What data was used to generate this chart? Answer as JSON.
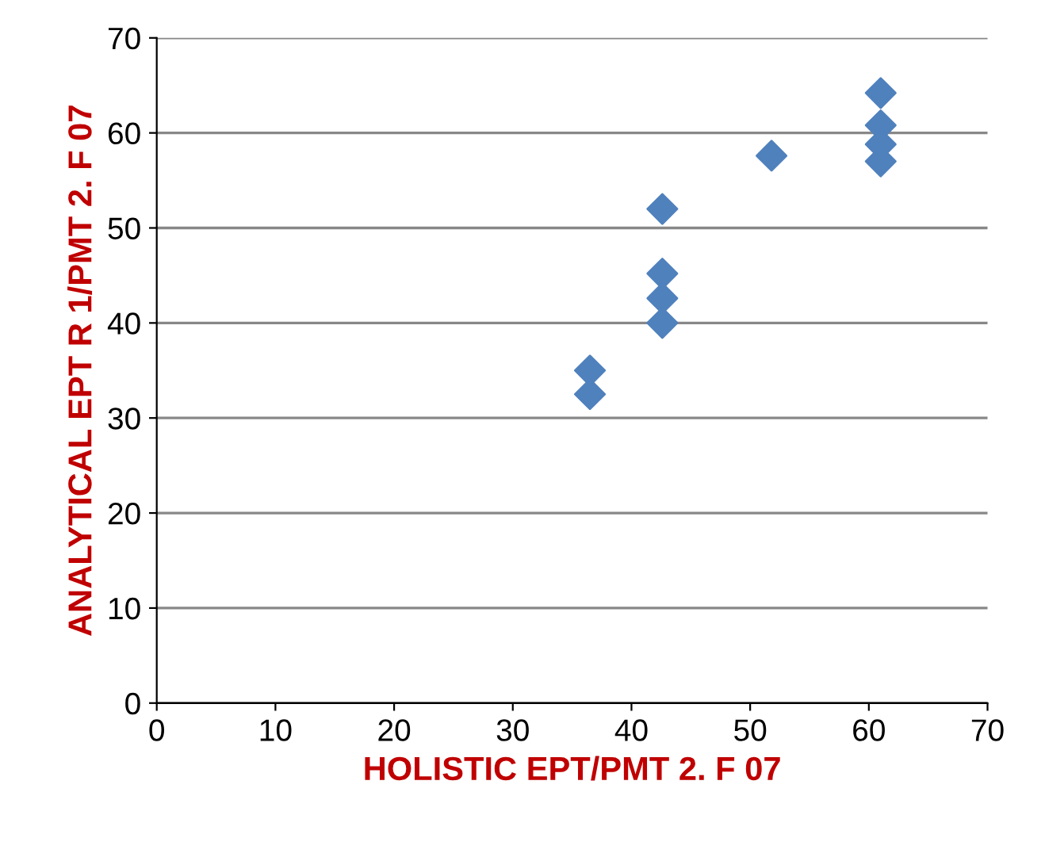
{
  "chart_data": {
    "type": "scatter",
    "xlabel": "HOLISTIC EPT/PMT 2. F 07",
    "ylabel": "ANALYTICAL EPT R 1/PMT 2. F 07",
    "x": [
      36.5,
      36.5,
      42.6,
      42.6,
      42.6,
      42.6,
      51.8,
      61,
      61,
      61,
      61
    ],
    "series": [
      {
        "color": "#4f81bd",
        "values": [
          35,
          32.5,
          52,
          45.2,
          42.6,
          40,
          57.6,
          64.2,
          60.8,
          58.8,
          57
        ]
      }
    ],
    "xlim": [
      0,
      70
    ],
    "xticks": [
      0,
      10,
      20,
      30,
      40,
      50,
      60,
      70
    ],
    "ylim": [
      0,
      70
    ],
    "yticks": [
      0,
      10,
      20,
      30,
      40,
      50,
      60,
      70
    ],
    "grid": "y",
    "marker": "diamond"
  }
}
